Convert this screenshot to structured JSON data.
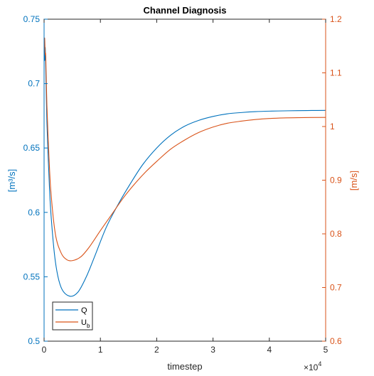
{
  "chart_data": {
    "type": "line",
    "title": "Channel Diagnosis",
    "xlabel": "timestep",
    "x_exponent_label": "×10",
    "x_exponent_power": "4",
    "xlim": [
      0,
      5
    ],
    "x_ticks": [
      "0",
      "1",
      "2",
      "3",
      "4",
      "5"
    ],
    "y_left": {
      "label": "[m³/s]",
      "lim": [
        0.5,
        0.75
      ],
      "ticks": [
        "0.5",
        "0.55",
        "0.6",
        "0.65",
        "0.7",
        "0.75"
      ],
      "color": "#0072BD"
    },
    "y_right": {
      "label": "[m/s]",
      "lim": [
        0.6,
        1.2
      ],
      "ticks": [
        "0.6",
        "0.7",
        "0.8",
        "0.9",
        "1",
        "1.1",
        "1.2"
      ],
      "color": "#D95319"
    },
    "grid": false,
    "legend_position": "bottom-left",
    "series": [
      {
        "name": "Q",
        "axis": "left",
        "color": "#0072BD",
        "x": [
          0,
          0.01,
          0.02,
          0.03,
          0.05,
          0.08,
          0.12,
          0.2,
          0.3,
          0.45,
          0.6,
          0.75,
          0.9,
          1.1,
          1.3,
          1.5,
          1.75,
          2.0,
          2.25,
          2.5,
          2.75,
          3.0,
          3.25,
          3.5,
          3.75,
          4.0,
          4.25,
          4.5,
          4.75,
          5.0
        ],
        "y": [
          0.735,
          0.718,
          0.728,
          0.71,
          0.67,
          0.635,
          0.6,
          0.562,
          0.542,
          0.535,
          0.538,
          0.55,
          0.566,
          0.588,
          0.605,
          0.62,
          0.637,
          0.65,
          0.66,
          0.667,
          0.6715,
          0.6745,
          0.6765,
          0.6775,
          0.6782,
          0.6786,
          0.6788,
          0.679,
          0.6791,
          0.6792
        ]
      },
      {
        "name": "U",
        "name_subscript": "b",
        "axis": "right",
        "color": "#D95319",
        "x": [
          0,
          0.01,
          0.02,
          0.03,
          0.05,
          0.08,
          0.12,
          0.2,
          0.3,
          0.4,
          0.5,
          0.65,
          0.8,
          1.0,
          1.2,
          1.4,
          1.6,
          1.8,
          2.0,
          2.25,
          2.5,
          2.75,
          3.0,
          3.25,
          3.5,
          3.75,
          4.0,
          4.25,
          4.5,
          5.0
        ],
        "y": [
          1.14,
          1.165,
          1.135,
          1.13,
          1.04,
          0.96,
          0.88,
          0.8,
          0.765,
          0.752,
          0.75,
          0.757,
          0.775,
          0.806,
          0.836,
          0.866,
          0.892,
          0.915,
          0.935,
          0.958,
          0.975,
          0.989,
          0.999,
          1.006,
          1.01,
          1.013,
          1.015,
          1.016,
          1.0165,
          1.017
        ]
      }
    ]
  }
}
